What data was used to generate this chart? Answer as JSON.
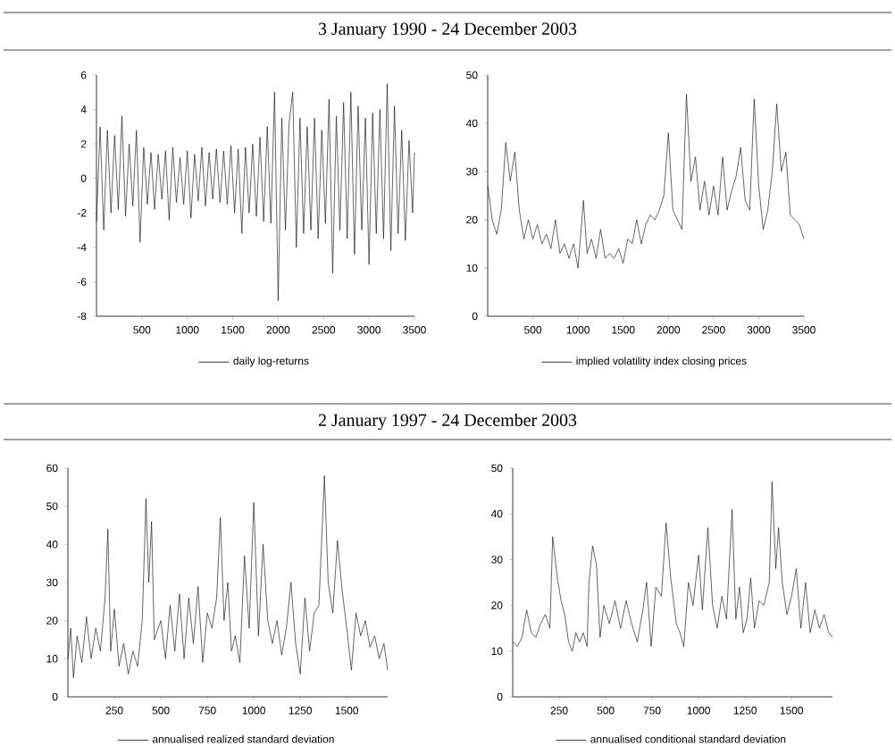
{
  "chart_data": [
    {
      "type": "line",
      "title": "3 January 1990 - 24 December 2003",
      "legend": "bottom",
      "xlim": [
        0,
        3500
      ],
      "ylim": [
        -8,
        6
      ],
      "xticks": [
        500,
        1000,
        1500,
        2000,
        2500,
        3000,
        3500
      ],
      "yticks": [
        -8,
        -6,
        -4,
        -2,
        0,
        2,
        4,
        6
      ],
      "x": [
        1,
        40,
        80,
        120,
        160,
        200,
        240,
        280,
        320,
        360,
        400,
        440,
        480,
        520,
        560,
        600,
        640,
        680,
        720,
        760,
        800,
        840,
        880,
        920,
        960,
        1000,
        1040,
        1080,
        1120,
        1160,
        1200,
        1240,
        1280,
        1320,
        1360,
        1400,
        1440,
        1480,
        1520,
        1560,
        1600,
        1640,
        1680,
        1720,
        1760,
        1800,
        1840,
        1880,
        1920,
        1960,
        2000,
        2040,
        2080,
        2120,
        2160,
        2200,
        2240,
        2280,
        2320,
        2360,
        2400,
        2440,
        2480,
        2520,
        2560,
        2600,
        2640,
        2680,
        2720,
        2760,
        2800,
        2840,
        2880,
        2920,
        2960,
        3000,
        3040,
        3080,
        3120,
        3160,
        3200,
        3240,
        3280,
        3320,
        3360,
        3400,
        3440,
        3480,
        3500
      ],
      "series": [
        {
          "name": "daily log-returns",
          "color": "#000000",
          "values": [
            -2.5,
            3.0,
            -3.0,
            2.8,
            -2.0,
            2.5,
            -1.8,
            3.6,
            -2.2,
            2.0,
            -1.6,
            2.8,
            -3.7,
            1.8,
            -1.5,
            1.5,
            -1.8,
            1.4,
            -1.2,
            1.6,
            -2.4,
            1.8,
            -1.4,
            1.2,
            -1.5,
            1.6,
            -2.3,
            1.4,
            -1.3,
            1.8,
            -1.6,
            1.5,
            -1.2,
            1.7,
            -1.4,
            1.6,
            -1.5,
            1.9,
            -2.0,
            1.7,
            -3.2,
            1.8,
            -2.0,
            2.0,
            -2.2,
            2.4,
            -2.5,
            3.0,
            -2.6,
            5.0,
            -7.1,
            3.5,
            -3.0,
            3.2,
            5.0,
            -4.0,
            3.5,
            -3.2,
            3.0,
            -3.0,
            3.5,
            -3.5,
            2.8,
            -2.6,
            4.6,
            -5.5,
            3.6,
            -3.0,
            4.4,
            -3.5,
            5.0,
            -4.4,
            4.2,
            -3.0,
            3.5,
            -5.0,
            3.8,
            -3.2,
            4.0,
            -3.5,
            5.5,
            -4.2,
            4.2,
            -3.2,
            2.8,
            -3.6,
            2.2,
            -2.0,
            1.5
          ]
        }
      ]
    },
    {
      "type": "line",
      "legend": "bottom",
      "xlim": [
        0,
        3500
      ],
      "ylim": [
        0,
        50
      ],
      "xticks": [
        500,
        1000,
        1500,
        2000,
        2500,
        3000,
        3500
      ],
      "yticks": [
        0,
        10,
        20,
        30,
        40,
        50
      ],
      "x": [
        1,
        50,
        100,
        150,
        200,
        250,
        300,
        350,
        400,
        450,
        500,
        550,
        600,
        650,
        700,
        750,
        800,
        850,
        900,
        950,
        1000,
        1060,
        1100,
        1150,
        1200,
        1250,
        1300,
        1350,
        1400,
        1450,
        1500,
        1550,
        1600,
        1650,
        1700,
        1750,
        1800,
        1850,
        1900,
        1950,
        2000,
        2050,
        2100,
        2150,
        2200,
        2250,
        2300,
        2350,
        2400,
        2450,
        2500,
        2550,
        2600,
        2650,
        2700,
        2750,
        2800,
        2850,
        2900,
        2950,
        3000,
        3050,
        3100,
        3150,
        3200,
        3250,
        3300,
        3350,
        3400,
        3450,
        3500
      ],
      "series": [
        {
          "name": "implied volatility index closing prices",
          "color": "#000000",
          "values": [
            27,
            20,
            17,
            22,
            36,
            28,
            34,
            22,
            16,
            20,
            16,
            19,
            15,
            17,
            14,
            20,
            13,
            15,
            12,
            15,
            10,
            24,
            13,
            16,
            12,
            18,
            12,
            13,
            12,
            14,
            11,
            16,
            15,
            20,
            15,
            19,
            21,
            20,
            22,
            25,
            38,
            22,
            20,
            18,
            46,
            28,
            33,
            22,
            28,
            21,
            27,
            21,
            33,
            22,
            26,
            29,
            35,
            24,
            22,
            45,
            27,
            18,
            22,
            30,
            44,
            30,
            34,
            21,
            20,
            19,
            16
          ]
        }
      ]
    },
    {
      "type": "line",
      "title": "2 January 1997 - 24 December 2003",
      "legend": "bottom",
      "xlim": [
        0,
        1720
      ],
      "ylim": [
        0,
        60
      ],
      "xticks": [
        250,
        500,
        750,
        1000,
        1250,
        1500
      ],
      "yticks": [
        0,
        10,
        20,
        30,
        40,
        50,
        60
      ],
      "x": [
        1,
        15,
        30,
        50,
        75,
        100,
        125,
        150,
        175,
        200,
        215,
        230,
        250,
        275,
        300,
        325,
        350,
        375,
        400,
        420,
        435,
        450,
        465,
        500,
        525,
        550,
        575,
        600,
        625,
        650,
        675,
        700,
        725,
        750,
        775,
        800,
        820,
        840,
        860,
        880,
        900,
        925,
        950,
        975,
        1000,
        1025,
        1050,
        1075,
        1100,
        1125,
        1150,
        1175,
        1200,
        1225,
        1250,
        1275,
        1300,
        1325,
        1350,
        1380,
        1400,
        1425,
        1450,
        1475,
        1500,
        1525,
        1550,
        1575,
        1600,
        1625,
        1650,
        1675,
        1700,
        1720
      ],
      "series": [
        {
          "name": "annualised realized standard deviation",
          "color": "#000000",
          "values": [
            10,
            18,
            5,
            16,
            9,
            21,
            10,
            18,
            12,
            26,
            44,
            12,
            23,
            8,
            14,
            6,
            12,
            8,
            20,
            52,
            30,
            46,
            15,
            20,
            10,
            24,
            12,
            27,
            10,
            26,
            14,
            29,
            9,
            22,
            18,
            26,
            47,
            20,
            30,
            12,
            16,
            9,
            37,
            18,
            51,
            16,
            40,
            20,
            14,
            20,
            11,
            18,
            30,
            14,
            6,
            26,
            12,
            22,
            24,
            58,
            30,
            22,
            41,
            28,
            18,
            7,
            22,
            16,
            20,
            13,
            16,
            10,
            14,
            7
          ]
        }
      ]
    },
    {
      "type": "line",
      "legend": "bottom",
      "xlim": [
        0,
        1720
      ],
      "ylim": [
        0,
        50
      ],
      "xticks": [
        250,
        500,
        750,
        1000,
        1250,
        1500
      ],
      "yticks": [
        0,
        10,
        20,
        30,
        40,
        50
      ],
      "x": [
        1,
        25,
        50,
        75,
        100,
        125,
        150,
        175,
        200,
        215,
        240,
        260,
        280,
        300,
        320,
        340,
        360,
        380,
        400,
        410,
        430,
        450,
        470,
        490,
        520,
        550,
        580,
        610,
        640,
        670,
        700,
        720,
        745,
        770,
        800,
        825,
        850,
        880,
        900,
        920,
        945,
        970,
        1000,
        1020,
        1050,
        1075,
        1100,
        1125,
        1150,
        1180,
        1200,
        1220,
        1240,
        1260,
        1280,
        1300,
        1325,
        1350,
        1380,
        1395,
        1415,
        1430,
        1450,
        1475,
        1500,
        1525,
        1550,
        1575,
        1600,
        1625,
        1650,
        1675,
        1700,
        1720
      ],
      "series": [
        {
          "name": "annualised conditional standard deviation",
          "color": "#000000",
          "values": [
            12,
            11,
            13,
            19,
            14,
            13,
            16,
            18,
            15,
            35,
            26,
            21,
            18,
            12,
            10,
            14,
            12,
            14,
            11,
            25,
            33,
            29,
            13,
            20,
            16,
            21,
            15,
            21,
            16,
            12,
            19,
            25,
            11,
            24,
            22,
            38,
            26,
            16,
            14,
            11,
            25,
            20,
            31,
            19,
            37,
            20,
            15,
            22,
            17,
            41,
            17,
            24,
            14,
            17,
            26,
            15,
            21,
            20,
            25,
            47,
            28,
            37,
            25,
            18,
            22,
            28,
            15,
            25,
            14,
            19,
            15,
            18,
            14,
            13
          ]
        }
      ]
    }
  ]
}
